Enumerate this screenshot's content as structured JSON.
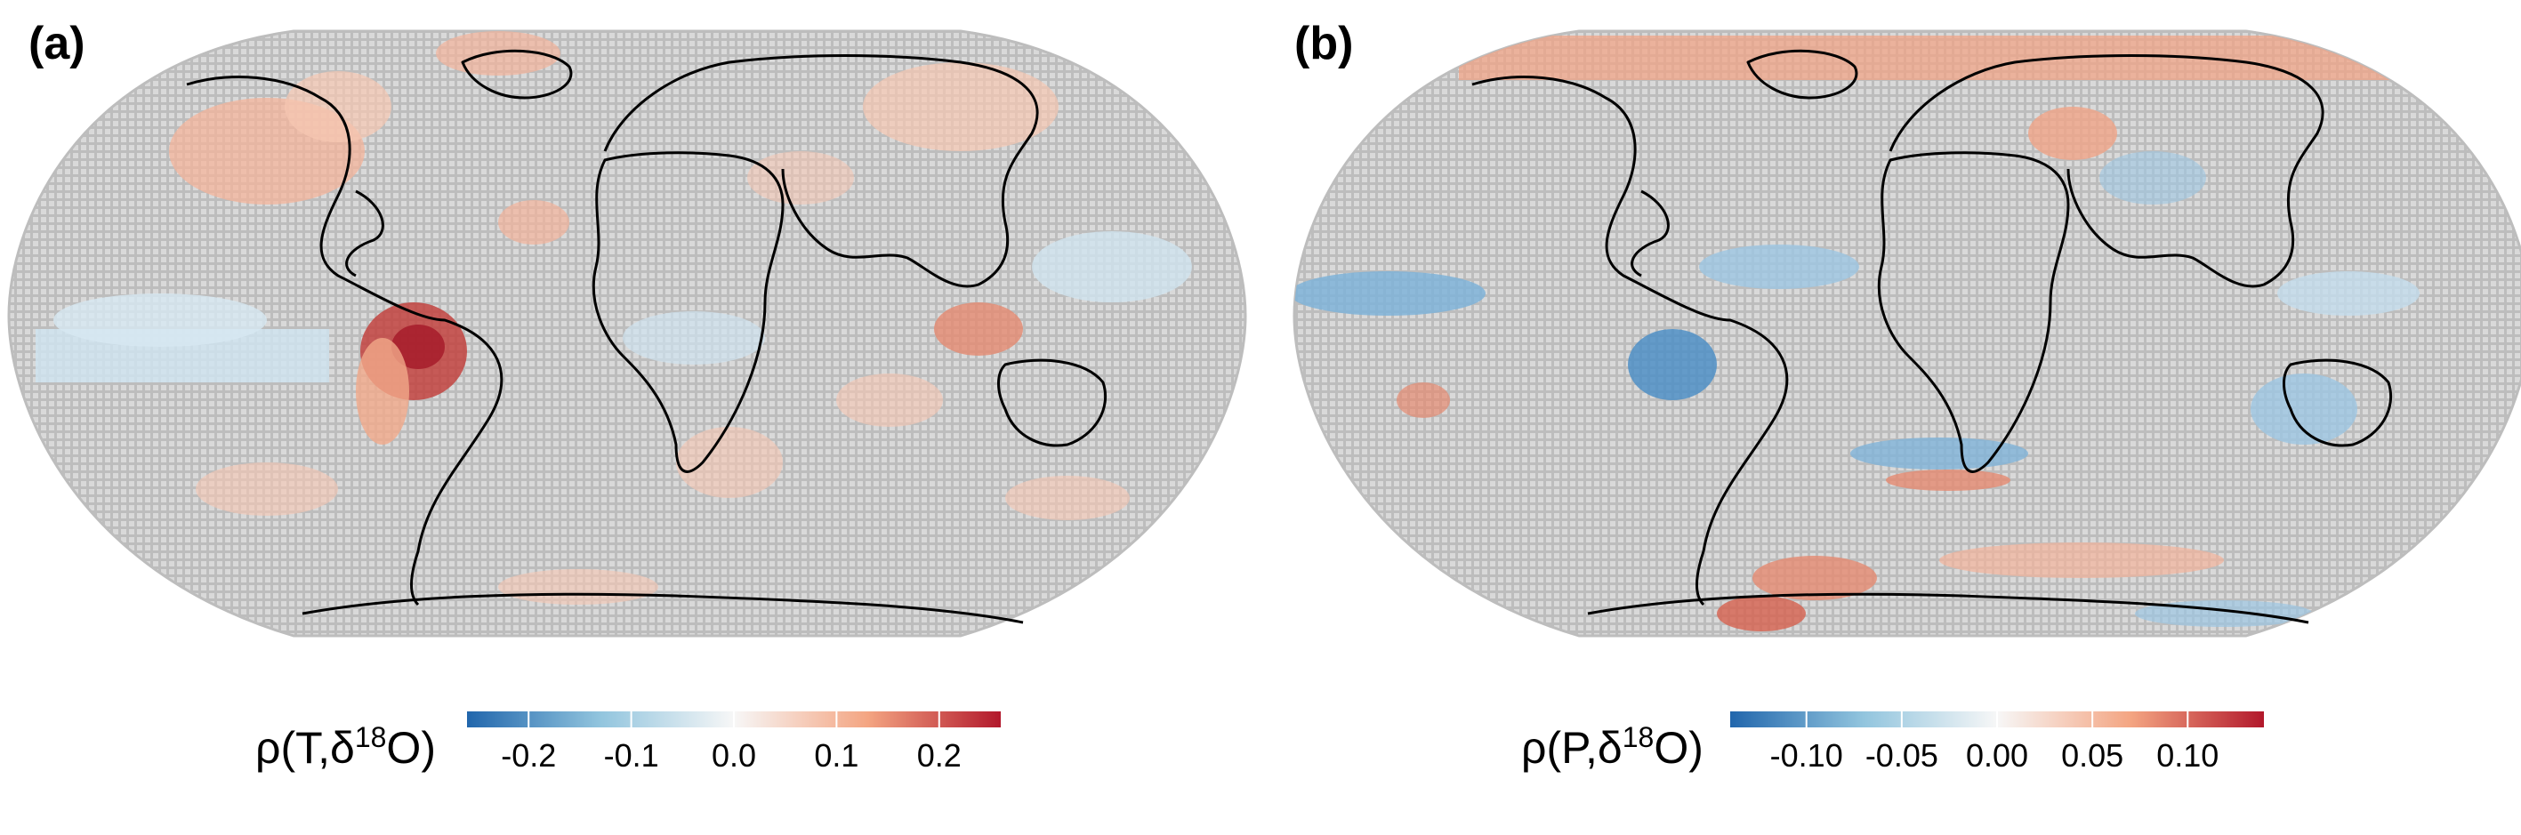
{
  "panels": [
    {
      "label": "(a)",
      "colorbar": {
        "title_prefix": "ρ(T,δ",
        "title_sup": "18",
        "title_suffix": "O)",
        "ticks": [
          "-0.2",
          "-0.1",
          "0.0",
          "0.1",
          "0.2"
        ],
        "tick_values": [
          -0.2,
          -0.1,
          0.0,
          0.1,
          0.2
        ],
        "range": [
          -0.26,
          0.26
        ]
      }
    },
    {
      "label": "(b)",
      "colorbar": {
        "title_prefix": "ρ(P,δ",
        "title_sup": "18",
        "title_suffix": "O)",
        "ticks": [
          "-0.10",
          "-0.05",
          "0.00",
          "0.05",
          "0.10"
        ],
        "tick_values": [
          -0.1,
          -0.05,
          0.0,
          0.05,
          0.1
        ],
        "range": [
          -0.14,
          0.14
        ]
      }
    }
  ],
  "colors": {
    "ocean_grid": "#c8c8c8",
    "negative_strong": "#2166ac",
    "negative_weak": "#d1e5f0",
    "neutral": "#f7f7f7",
    "positive_weak": "#fddbc7",
    "positive_strong": "#b2182b",
    "coastline": "#000000"
  }
}
